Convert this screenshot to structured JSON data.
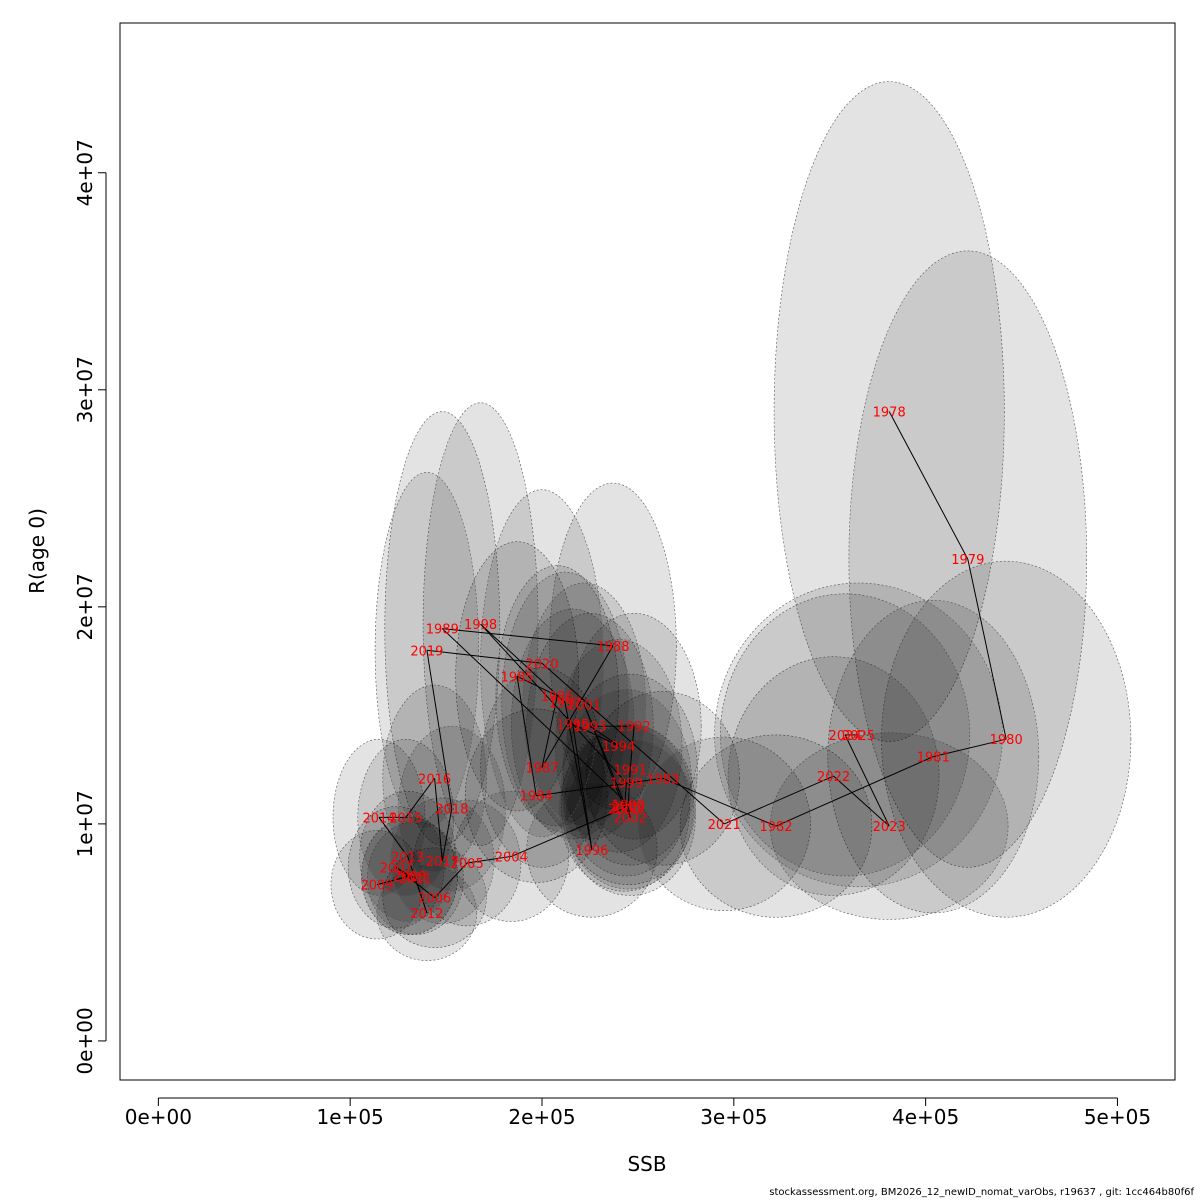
{
  "chart_data": {
    "type": "scatter",
    "xlabel": "SSB",
    "ylabel": "R(age 0)",
    "xlim": [
      -20000,
      530000
    ],
    "ylim": [
      -1800000,
      46900000
    ],
    "x_ticks": [
      {
        "value": 0,
        "label": "0e+00"
      },
      {
        "value": 100000,
        "label": "1e+05"
      },
      {
        "value": 200000,
        "label": "2e+05"
      },
      {
        "value": 300000,
        "label": "3e+05"
      },
      {
        "value": 400000,
        "label": "4e+05"
      },
      {
        "value": 500000,
        "label": "5e+05"
      }
    ],
    "y_ticks": [
      {
        "value": 0,
        "label": "0e+00"
      },
      {
        "value": 10000000,
        "label": "1e+07"
      },
      {
        "value": 20000000,
        "label": "2e+07"
      },
      {
        "value": 30000000,
        "label": "3e+07"
      },
      {
        "value": 40000000,
        "label": "4e+07"
      }
    ],
    "points": [
      {
        "year": "1978",
        "ssb": 381000,
        "rec": 29000000
      },
      {
        "year": "1979",
        "ssb": 422000,
        "rec": 22200000
      },
      {
        "year": "1980",
        "ssb": 442000,
        "rec": 13900000
      },
      {
        "year": "1981",
        "ssb": 404000,
        "rec": 13100000
      },
      {
        "year": "1982",
        "ssb": 322000,
        "rec": 9900000
      },
      {
        "year": "1983",
        "ssb": 263000,
        "rec": 12100000
      },
      {
        "year": "1984",
        "ssb": 197000,
        "rec": 11300000
      },
      {
        "year": "1985",
        "ssb": 187000,
        "rec": 16800000
      },
      {
        "year": "1986",
        "ssb": 208000,
        "rec": 15900000
      },
      {
        "year": "1987",
        "ssb": 200000,
        "rec": 12600000
      },
      {
        "year": "1988",
        "ssb": 237000,
        "rec": 18200000
      },
      {
        "year": "1989",
        "ssb": 148000,
        "rec": 19000000
      },
      {
        "year": "1990",
        "ssb": 245000,
        "rec": 10900000
      },
      {
        "year": "1991",
        "ssb": 246000,
        "rec": 12500000
      },
      {
        "year": "1992",
        "ssb": 248000,
        "rec": 14500000
      },
      {
        "year": "1993",
        "ssb": 225000,
        "rec": 14500000
      },
      {
        "year": "1994",
        "ssb": 240000,
        "rec": 13600000
      },
      {
        "year": "1995",
        "ssb": 216000,
        "rec": 14600000
      },
      {
        "year": "1996",
        "ssb": 226000,
        "rec": 8800000
      },
      {
        "year": "1997",
        "ssb": 212000,
        "rec": 15600000
      },
      {
        "year": "1998",
        "ssb": 168000,
        "rec": 19200000
      },
      {
        "year": "1999",
        "ssb": 244000,
        "rec": 11900000
      },
      {
        "year": "2000",
        "ssb": 243000,
        "rec": 10700000
      },
      {
        "year": "2001",
        "ssb": 222000,
        "rec": 15500000
      },
      {
        "year": "2002",
        "ssb": 246000,
        "rec": 10300000
      },
      {
        "year": "2003",
        "ssb": 245000,
        "rec": 10800000
      },
      {
        "year": "2004",
        "ssb": 184000,
        "rec": 8500000
      },
      {
        "year": "2005",
        "ssb": 161000,
        "rec": 8200000
      },
      {
        "year": "2006",
        "ssb": 144000,
        "rec": 6600000
      },
      {
        "year": "2007",
        "ssb": 124000,
        "rec": 8000000
      },
      {
        "year": "2008",
        "ssb": 131000,
        "rec": 7600000
      },
      {
        "year": "2009",
        "ssb": 114000,
        "rec": 7200000
      },
      {
        "year": "2010",
        "ssb": 131000,
        "rec": 7600000
      },
      {
        "year": "2011",
        "ssb": 134000,
        "rec": 7500000
      },
      {
        "year": "2012",
        "ssb": 140000,
        "rec": 5900000
      },
      {
        "year": "2013",
        "ssb": 130000,
        "rec": 8500000
      },
      {
        "year": "2014",
        "ssb": 115000,
        "rec": 10300000
      },
      {
        "year": "2015",
        "ssb": 129000,
        "rec": 10300000
      },
      {
        "year": "2016",
        "ssb": 144000,
        "rec": 12100000
      },
      {
        "year": "2017",
        "ssb": 148000,
        "rec": 8300000
      },
      {
        "year": "2018",
        "ssb": 153000,
        "rec": 10700000
      },
      {
        "year": "2019",
        "ssb": 140000,
        "rec": 18000000
      },
      {
        "year": "2020",
        "ssb": 200000,
        "rec": 17400000
      },
      {
        "year": "2021",
        "ssb": 295000,
        "rec": 10000000
      },
      {
        "year": "2022",
        "ssb": 352000,
        "rec": 12200000
      },
      {
        "year": "2023",
        "ssb": 381000,
        "rec": 9900000
      },
      {
        "year": "2024",
        "ssb": 358000,
        "rec": 14100000
      },
      {
        "year": "2025",
        "ssb": 365000,
        "rec": 14100000
      }
    ],
    "confidence_ellipses": [
      {
        "year": "1978",
        "ssb_half_width": 60000,
        "rec_half_height": 15200000
      },
      {
        "year": "1979",
        "ssb_half_width": 62000,
        "rec_half_height": 14200000
      },
      {
        "year": "1980",
        "ssb_half_width": 65000,
        "rec_half_height": 8200000
      },
      {
        "year": "1981",
        "ssb_half_width": 55000,
        "rec_half_height": 7200000
      },
      {
        "year": "1982",
        "ssb_half_width": 50000,
        "rec_half_height": 4200000
      },
      {
        "year": "1983",
        "ssb_half_width": 40000,
        "rec_half_height": 4000000
      },
      {
        "year": "1984",
        "ssb_half_width": 37000,
        "rec_half_height": 4000000
      },
      {
        "year": "1985",
        "ssb_half_width": 32000,
        "rec_half_height": 6200000
      },
      {
        "year": "1986",
        "ssb_half_width": 32000,
        "rec_half_height": 6000000
      },
      {
        "year": "1987",
        "ssb_half_width": 32000,
        "rec_half_height": 4600000
      },
      {
        "year": "1988",
        "ssb_half_width": 33000,
        "rec_half_height": 7500000
      },
      {
        "year": "1989",
        "ssb_half_width": 30000,
        "rec_half_height": 10000000
      },
      {
        "year": "1990",
        "ssb_half_width": 35000,
        "rec_half_height": 3700000
      },
      {
        "year": "1991",
        "ssb_half_width": 35000,
        "rec_half_height": 4400000
      },
      {
        "year": "1992",
        "ssb_half_width": 35000,
        "rec_half_height": 5200000
      },
      {
        "year": "1993",
        "ssb_half_width": 33000,
        "rec_half_height": 5200000
      },
      {
        "year": "1994",
        "ssb_half_width": 33000,
        "rec_half_height": 4900000
      },
      {
        "year": "1995",
        "ssb_half_width": 32000,
        "rec_half_height": 5300000
      },
      {
        "year": "1996",
        "ssb_half_width": 34000,
        "rec_half_height": 3100000
      },
      {
        "year": "1997",
        "ssb_half_width": 33000,
        "rec_half_height": 6000000
      },
      {
        "year": "1998",
        "ssb_half_width": 30000,
        "rec_half_height": 10200000
      },
      {
        "year": "1999",
        "ssb_half_width": 34000,
        "rec_half_height": 4300000
      },
      {
        "year": "2000",
        "ssb_half_width": 34000,
        "rec_half_height": 3800000
      },
      {
        "year": "2001",
        "ssb_half_width": 32000,
        "rec_half_height": 5600000
      },
      {
        "year": "2002",
        "ssb_half_width": 34000,
        "rec_half_height": 3600000
      },
      {
        "year": "2003",
        "ssb_half_width": 34000,
        "rec_half_height": 3800000
      },
      {
        "year": "2004",
        "ssb_half_width": 30000,
        "rec_half_height": 3000000
      },
      {
        "year": "2005",
        "ssb_half_width": 28000,
        "rec_half_height": 2900000
      },
      {
        "year": "2006",
        "ssb_half_width": 27000,
        "rec_half_height": 2300000
      },
      {
        "year": "2007",
        "ssb_half_width": 25000,
        "rec_half_height": 2800000
      },
      {
        "year": "2008",
        "ssb_half_width": 25000,
        "rec_half_height": 2700000
      },
      {
        "year": "2009",
        "ssb_half_width": 24000,
        "rec_half_height": 2500000
      },
      {
        "year": "2010",
        "ssb_half_width": 25000,
        "rec_half_height": 2700000
      },
      {
        "year": "2011",
        "ssb_half_width": 25000,
        "rec_half_height": 2600000
      },
      {
        "year": "2012",
        "ssb_half_width": 26000,
        "rec_half_height": 2200000
      },
      {
        "year": "2013",
        "ssb_half_width": 25000,
        "rec_half_height": 3000000
      },
      {
        "year": "2014",
        "ssb_half_width": 24000,
        "rec_half_height": 3600000
      },
      {
        "year": "2015",
        "ssb_half_width": 25000,
        "rec_half_height": 3600000
      },
      {
        "year": "2016",
        "ssb_half_width": 27000,
        "rec_half_height": 4300000
      },
      {
        "year": "2017",
        "ssb_half_width": 27000,
        "rec_half_height": 2900000
      },
      {
        "year": "2018",
        "ssb_half_width": 28000,
        "rec_half_height": 3800000
      },
      {
        "year": "2019",
        "ssb_half_width": 27000,
        "rec_half_height": 8200000
      },
      {
        "year": "2020",
        "ssb_half_width": 32000,
        "rec_half_height": 8000000
      },
      {
        "year": "2021",
        "ssb_half_width": 45000,
        "rec_half_height": 4000000
      },
      {
        "year": "2022",
        "ssb_half_width": 55000,
        "rec_half_height": 5500000
      },
      {
        "year": "2023",
        "ssb_half_width": 62000,
        "rec_half_height": 4300000
      },
      {
        "year": "2024",
        "ssb_half_width": 65000,
        "rec_half_height": 6500000
      },
      {
        "year": "2025",
        "ssb_half_width": 75000,
        "rec_half_height": 7000000
      }
    ],
    "colors": {
      "label": "#ff0000",
      "line": "#000000",
      "ellipse_fill": "#000000",
      "ellipse_stroke": "#555555"
    }
  },
  "footer": {
    "text": "stockassessment.org, BM2026_12_newID_nomat_varObs, r19637 , git: 1cc464b80f6f"
  }
}
